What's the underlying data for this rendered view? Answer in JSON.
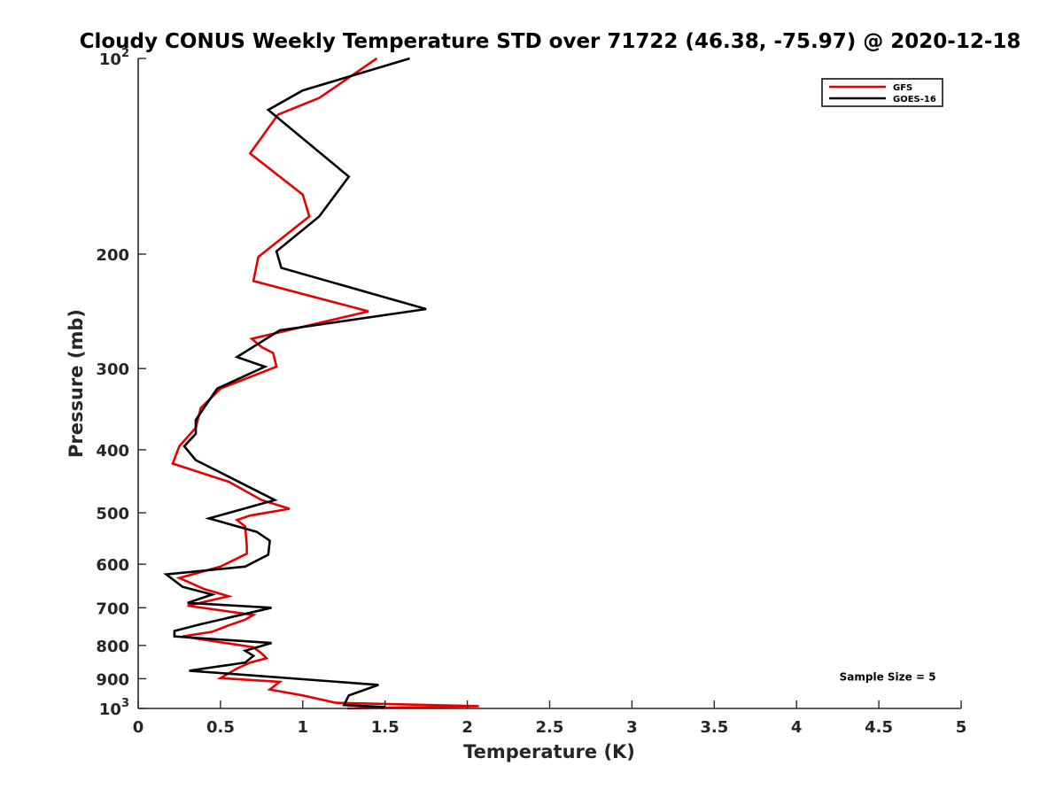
{
  "chart_data": {
    "type": "line",
    "title": "Cloudy CONUS Weekly Temperature STD over 71722 (46.38, -75.97) @ 2020-12-18",
    "xlabel": "Temperature (K)",
    "ylabel": "Pressure (mb)",
    "xlim": [
      0,
      5
    ],
    "ylim": [
      100,
      1000
    ],
    "yscale": "log",
    "y_reversed": true,
    "grid": false,
    "legend_position": "top-right",
    "x_ticks": [
      {
        "value": 0,
        "label": "0"
      },
      {
        "value": 0.5,
        "label": "0.5"
      },
      {
        "value": 1,
        "label": "1"
      },
      {
        "value": 1.5,
        "label": "1.5"
      },
      {
        "value": 2,
        "label": "2"
      },
      {
        "value": 2.5,
        "label": "2.5"
      },
      {
        "value": 3,
        "label": "3"
      },
      {
        "value": 3.5,
        "label": "3.5"
      },
      {
        "value": 4,
        "label": "4"
      },
      {
        "value": 4.5,
        "label": "4.5"
      },
      {
        "value": 5,
        "label": "5"
      }
    ],
    "y_ticks": [
      {
        "value": 100,
        "base": "10",
        "exp": "2"
      },
      {
        "value": 200,
        "label": "200"
      },
      {
        "value": 300,
        "label": "300"
      },
      {
        "value": 400,
        "label": "400"
      },
      {
        "value": 500,
        "label": "500"
      },
      {
        "value": 600,
        "label": "600"
      },
      {
        "value": 700,
        "label": "700"
      },
      {
        "value": 800,
        "label": "800"
      },
      {
        "value": 900,
        "label": "900"
      },
      {
        "value": 1000,
        "base": "10",
        "exp": "3"
      }
    ],
    "series": [
      {
        "name": "GFS",
        "color": "#e60000",
        "points": [
          [
            1.45,
            100
          ],
          [
            1.1,
            115
          ],
          [
            0.85,
            122
          ],
          [
            0.68,
            140
          ],
          [
            1.0,
            162
          ],
          [
            1.04,
            175
          ],
          [
            0.73,
            202
          ],
          [
            0.7,
            220
          ],
          [
            1.4,
            245
          ],
          [
            0.69,
            270
          ],
          [
            0.75,
            278
          ],
          [
            0.82,
            284
          ],
          [
            0.84,
            298
          ],
          [
            0.5,
            322
          ],
          [
            0.38,
            345
          ],
          [
            0.35,
            370
          ],
          [
            0.25,
            395
          ],
          [
            0.21,
            420
          ],
          [
            0.55,
            448
          ],
          [
            0.75,
            478
          ],
          [
            0.92,
            493
          ],
          [
            0.68,
            505
          ],
          [
            0.6,
            513
          ],
          [
            0.65,
            525
          ],
          [
            0.66,
            562
          ],
          [
            0.66,
            578
          ],
          [
            0.5,
            605
          ],
          [
            0.25,
            630
          ],
          [
            0.4,
            655
          ],
          [
            0.55,
            672
          ],
          [
            0.3,
            695
          ],
          [
            0.7,
            718
          ],
          [
            0.65,
            730
          ],
          [
            0.55,
            745
          ],
          [
            0.45,
            762
          ],
          [
            0.27,
            775
          ],
          [
            0.7,
            805
          ],
          [
            0.75,
            823
          ],
          [
            0.78,
            837
          ],
          [
            0.68,
            850
          ],
          [
            0.6,
            868
          ],
          [
            0.5,
            898
          ],
          [
            0.86,
            910
          ],
          [
            0.8,
            935
          ],
          [
            1.0,
            955
          ],
          [
            1.2,
            980
          ],
          [
            2.07,
            992
          ],
          [
            1.27,
            1000
          ]
        ]
      },
      {
        "name": "GOES-16",
        "color": "#000000",
        "points": [
          [
            1.65,
            100
          ],
          [
            1.0,
            112
          ],
          [
            0.79,
            120
          ],
          [
            1.28,
            152
          ],
          [
            1.1,
            175
          ],
          [
            0.84,
            198
          ],
          [
            0.87,
            210
          ],
          [
            1.75,
            243
          ],
          [
            0.86,
            262
          ],
          [
            0.6,
            288
          ],
          [
            0.77,
            298
          ],
          [
            0.48,
            322
          ],
          [
            0.35,
            360
          ],
          [
            0.35,
            378
          ],
          [
            0.28,
            395
          ],
          [
            0.35,
            415
          ],
          [
            0.55,
            440
          ],
          [
            0.83,
            478
          ],
          [
            0.43,
            510
          ],
          [
            0.72,
            535
          ],
          [
            0.8,
            552
          ],
          [
            0.79,
            580
          ],
          [
            0.65,
            605
          ],
          [
            0.17,
            622
          ],
          [
            0.27,
            650
          ],
          [
            0.45,
            668
          ],
          [
            0.3,
            688
          ],
          [
            0.81,
            700
          ],
          [
            0.38,
            742
          ],
          [
            0.22,
            760
          ],
          [
            0.22,
            775
          ],
          [
            0.81,
            793
          ],
          [
            0.65,
            815
          ],
          [
            0.7,
            830
          ],
          [
            0.65,
            850
          ],
          [
            0.31,
            875
          ],
          [
            1.46,
            920
          ],
          [
            1.28,
            955
          ],
          [
            1.25,
            988
          ],
          [
            1.5,
            995
          ],
          [
            1.48,
            1000
          ]
        ]
      }
    ],
    "annotations": [
      {
        "text": "Sample Size = 5",
        "x": 4.5,
        "y": 900
      }
    ]
  }
}
